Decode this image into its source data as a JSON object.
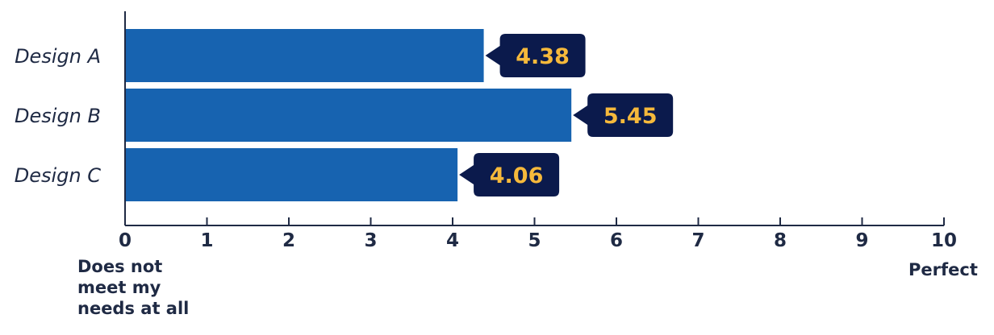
{
  "chart_data": {
    "type": "bar",
    "orientation": "horizontal",
    "categories": [
      "Design A",
      "Design B",
      "Design C"
    ],
    "values": [
      4.38,
      5.45,
      4.06
    ],
    "data_labels": [
      "4.38",
      "5.45",
      "4.06"
    ],
    "xlim": [
      0,
      10
    ],
    "x_ticks": [
      "0",
      "1",
      "2",
      "3",
      "4",
      "5",
      "6",
      "7",
      "8",
      "9",
      "10"
    ],
    "scale_low_label": "Does not\nmeet my\nneeds at all",
    "scale_high_label": "Perfect",
    "grid": false,
    "colors": {
      "bar": "#1763b0",
      "label_bg": "#0b1a4c",
      "label_text": "#f6b93b",
      "axis": "#1f2a44"
    }
  }
}
